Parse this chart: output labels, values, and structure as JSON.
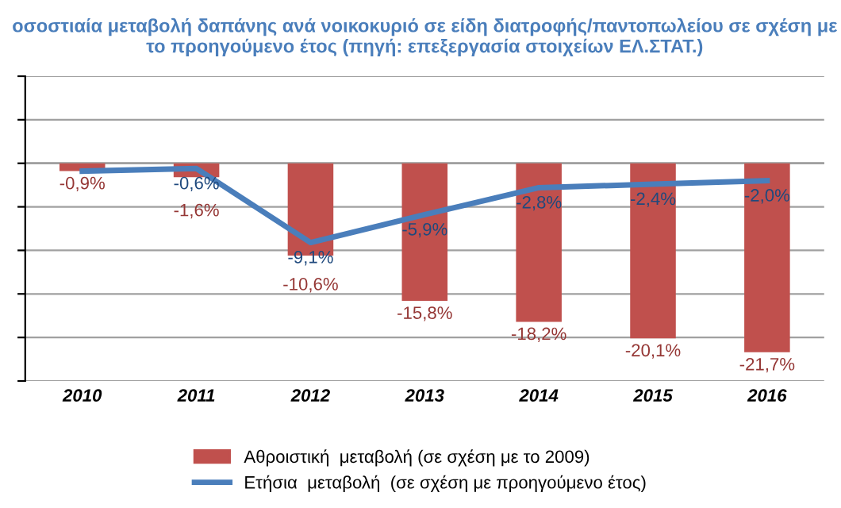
{
  "chart_data": {
    "type": "bar",
    "title": "οσοστιαία μεταβολή δαπάνης ανά νοικοκυριό σε είδη διατροφής/παντοπωλείου σε σχέση με το προηγούμενο έτος (πηγή: επεξεργασία στοιχείων ΕΛ.ΣΤΑΤ.)",
    "categories": [
      "2010",
      "2011",
      "2012",
      "2013",
      "2014",
      "2015",
      "2016"
    ],
    "series": [
      {
        "name": "Αθροιστική  μεταβολή (σε σχέση με το 2009)",
        "color": "#c0504d",
        "values": [
          -0.9,
          -1.6,
          -10.6,
          -15.8,
          -18.2,
          -20.1,
          -21.7
        ],
        "value_labels": [
          "-0,9%",
          "-1,6%",
          "-10,6%",
          "-15,8%",
          "-18,2%",
          "-20,1%",
          "-21,7%"
        ]
      },
      {
        "name": "Ετήσια  μεταβολή  (σε σχέση με προηγούμενο έτος)",
        "type": "line",
        "color": "#4a7ebb",
        "values": [
          -0.9,
          -0.6,
          -9.1,
          -5.9,
          -2.8,
          -2.4,
          -2.0
        ],
        "value_labels": [
          null,
          "-0,6%",
          "-9,1%",
          "-5,9%",
          "-2,8%",
          "-2,4%",
          "-2,0%"
        ]
      }
    ],
    "ylim": [
      -25,
      10
    ],
    "yticks": [
      {
        "value": -25,
        "label": null
      },
      {
        "value": -20,
        "label": null
      },
      {
        "value": -15,
        "label": null
      },
      {
        "value": -10,
        "label": null
      },
      {
        "value": -5,
        "label": null
      },
      {
        "value": 0,
        "label": null
      },
      {
        "value": 5,
        "label": null
      },
      {
        "value": 10,
        "label": null
      }
    ],
    "tick_labels": "x",
    "grid": "y",
    "legend": "bottom",
    "marker": "none",
    "line_style": "solid"
  }
}
